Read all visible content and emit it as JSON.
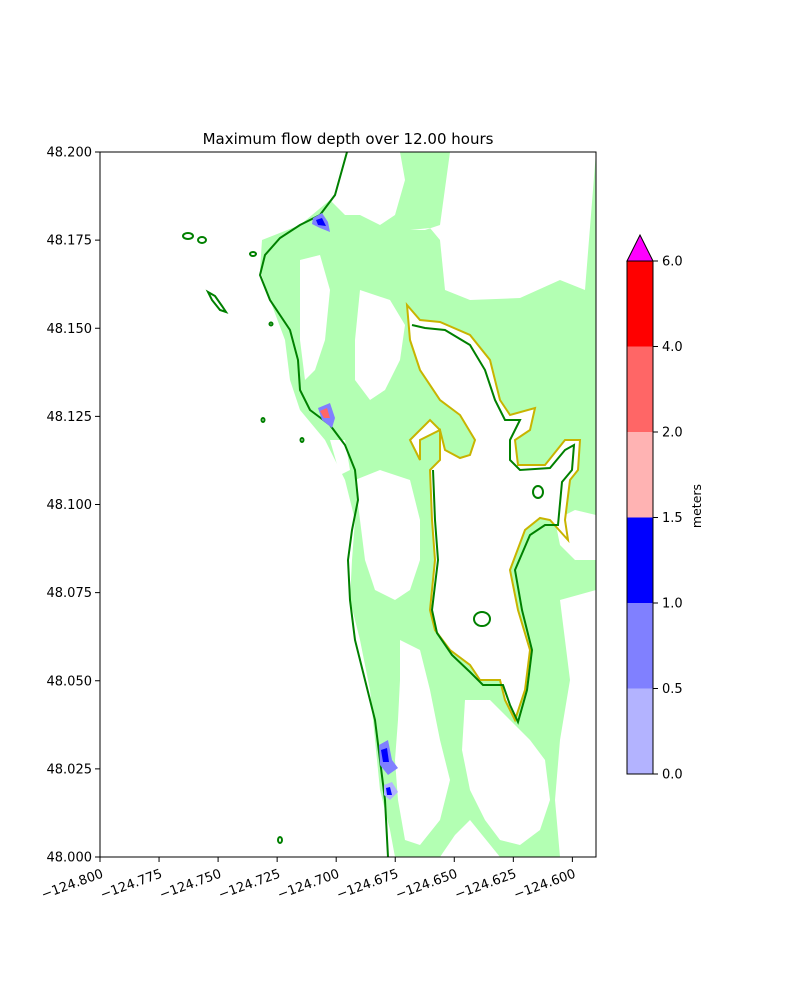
{
  "title": "Maximum flow depth over 12.00 hours",
  "x_axis": {
    "ticks": [
      -124.8,
      -124.775,
      -124.75,
      -124.725,
      -124.7,
      -124.675,
      -124.65,
      -124.625,
      -124.6
    ],
    "tick_labels": [
      "−124.800",
      "−124.775",
      "−124.750",
      "−124.725",
      "−124.700",
      "−124.675",
      "−124.650",
      "−124.625",
      "−124.600"
    ],
    "range": [
      -124.8,
      -124.59
    ]
  },
  "y_axis": {
    "ticks": [
      48.0,
      48.025,
      48.05,
      48.075,
      48.1,
      48.125,
      48.15,
      48.175,
      48.2
    ],
    "tick_labels": [
      "48.000",
      "48.025",
      "48.050",
      "48.075",
      "48.100",
      "48.125",
      "48.150",
      "48.175",
      "48.200"
    ],
    "range": [
      48.0,
      48.2
    ]
  },
  "colorbar": {
    "label": "meters",
    "levels": [
      0.0,
      0.5,
      1.0,
      1.5,
      2.0,
      4.0,
      6.0
    ],
    "tick_labels": [
      "0.0",
      "0.5",
      "1.0",
      "1.5",
      "2.0",
      "4.0",
      "6.0"
    ],
    "colors": [
      "#b3b3ff",
      "#8080ff",
      "#0000ff",
      "#ffb3b3",
      "#ff6666",
      "#ff0000"
    ],
    "extend_max_color": "#ff00ff"
  },
  "colors": {
    "land": "#b3ffb3",
    "water": "#ffffff",
    "shoreline": "#008000",
    "contour_inner": "#c8b400"
  }
}
